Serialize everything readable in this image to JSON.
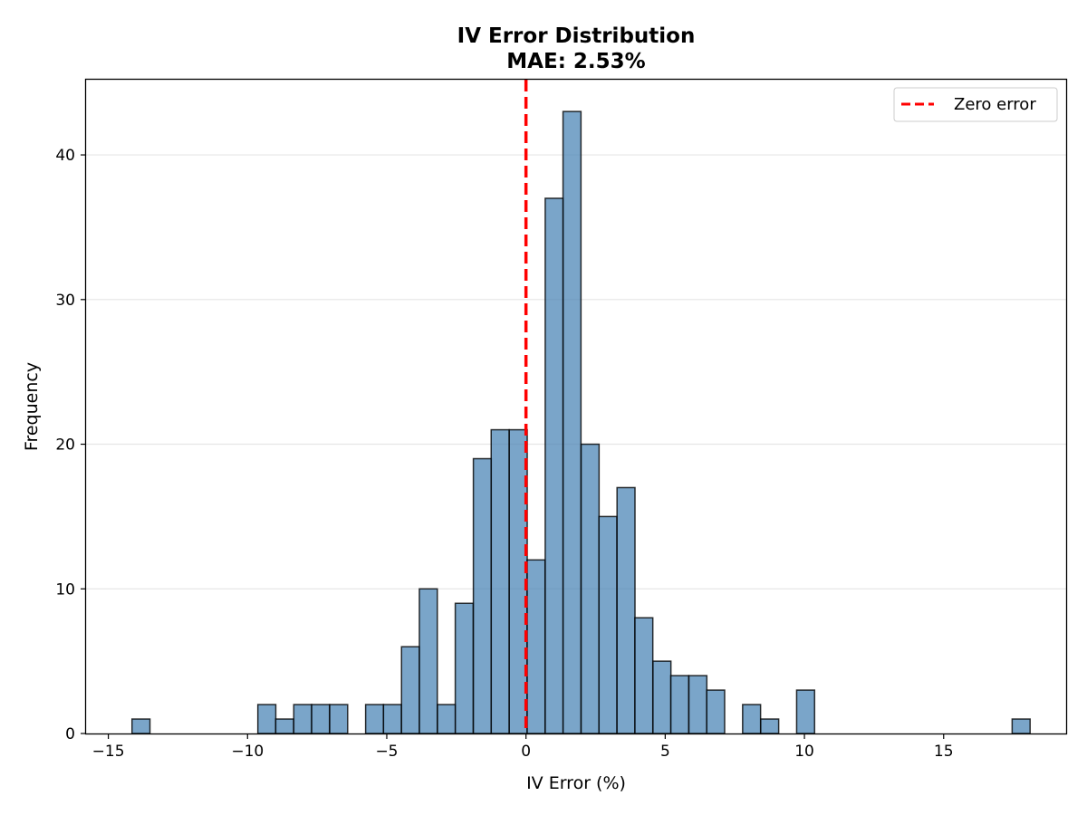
{
  "chart_data": {
    "type": "bar",
    "title": "IV Error Distribution",
    "subtitle": "MAE: 2.53%",
    "xlabel": "IV Error (%)",
    "ylabel": "Frequency",
    "xlim": [
      -15.8,
      19.4
    ],
    "ylim": [
      0,
      45.2
    ],
    "xticks": [
      -15,
      -10,
      -5,
      0,
      5,
      10,
      15
    ],
    "yticks": [
      0,
      10,
      20,
      30,
      40
    ],
    "grid": "y",
    "bar_color": "#4682b4",
    "bar_edge_color": "#000000",
    "bin_width": 0.645,
    "bins": [
      {
        "x0": -14.15,
        "count": 1
      },
      {
        "x0": -9.63,
        "count": 2
      },
      {
        "x0": -8.99,
        "count": 1
      },
      {
        "x0": -8.34,
        "count": 2
      },
      {
        "x0": -7.7,
        "count": 2
      },
      {
        "x0": -7.05,
        "count": 2
      },
      {
        "x0": -5.76,
        "count": 2
      },
      {
        "x0": -5.12,
        "count": 2
      },
      {
        "x0": -4.47,
        "count": 6
      },
      {
        "x0": -3.83,
        "count": 10
      },
      {
        "x0": -3.18,
        "count": 2
      },
      {
        "x0": -2.54,
        "count": 9
      },
      {
        "x0": -1.89,
        "count": 19
      },
      {
        "x0": -1.25,
        "count": 21
      },
      {
        "x0": -0.6,
        "count": 21
      },
      {
        "x0": 0.04,
        "count": 12
      },
      {
        "x0": 0.69,
        "count": 37
      },
      {
        "x0": 1.33,
        "count": 43
      },
      {
        "x0": 1.98,
        "count": 20
      },
      {
        "x0": 2.62,
        "count": 15
      },
      {
        "x0": 3.27,
        "count": 17
      },
      {
        "x0": 3.91,
        "count": 8
      },
      {
        "x0": 4.56,
        "count": 5
      },
      {
        "x0": 5.2,
        "count": 4
      },
      {
        "x0": 5.85,
        "count": 4
      },
      {
        "x0": 6.49,
        "count": 3
      },
      {
        "x0": 7.78,
        "count": 2
      },
      {
        "x0": 8.43,
        "count": 1
      },
      {
        "x0": 9.72,
        "count": 3
      },
      {
        "x0": 17.46,
        "count": 1
      }
    ],
    "reference_line": {
      "x": 0,
      "label": "Zero error",
      "color": "#ff0000",
      "style": "dashed"
    },
    "legend_position": "top-right"
  }
}
